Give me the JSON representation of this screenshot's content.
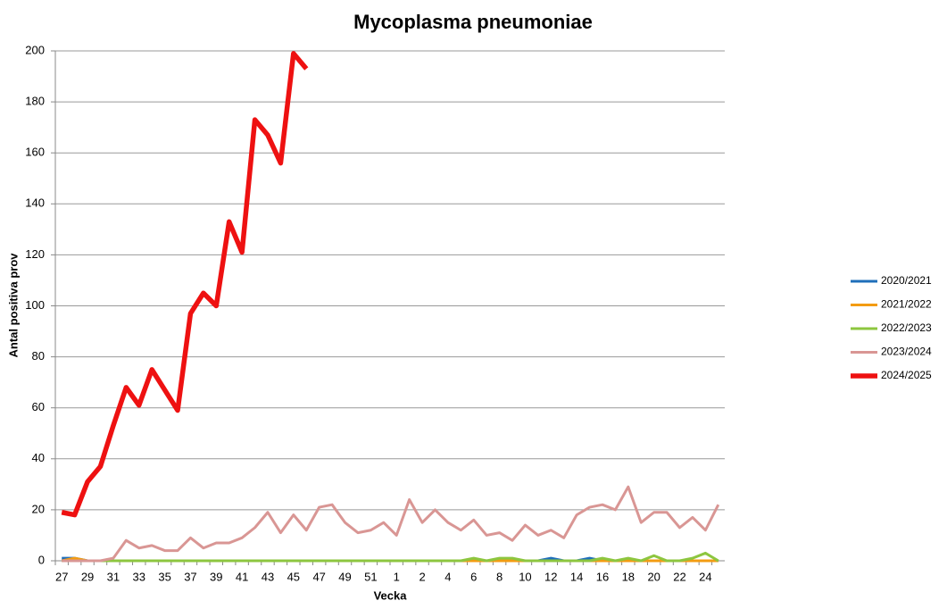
{
  "chart_data": {
    "type": "line",
    "title": "Mycoplasma pneumoniae",
    "x_label": "Vecka",
    "y_label": "Antal positiva prov",
    "categories": [
      "27",
      null,
      "29",
      null,
      "31",
      null,
      "33",
      null,
      "35",
      null,
      "37",
      null,
      "39",
      null,
      "41",
      null,
      "43",
      null,
      "45",
      null,
      "47",
      null,
      "49",
      null,
      "51",
      null,
      "1",
      null,
      "2",
      null,
      "4",
      null,
      "6",
      null,
      "8",
      null,
      "10",
      null,
      "12",
      null,
      "14",
      null,
      "16",
      null,
      "18",
      null,
      "20",
      null,
      "22",
      null,
      "24",
      null
    ],
    "ylim": [
      0,
      200
    ],
    "yticks": [
      0,
      20,
      40,
      60,
      80,
      100,
      120,
      140,
      160,
      180,
      200
    ],
    "grid": true,
    "legend": "right",
    "series": [
      {
        "name": "2020/2021",
        "color": "#1f6fba",
        "width": 3,
        "values": [
          1,
          1,
          0,
          0,
          0,
          0,
          0,
          0,
          0,
          0,
          0,
          0,
          0,
          0,
          0,
          0,
          0,
          0,
          0,
          0,
          0,
          0,
          0,
          0,
          0,
          0,
          0,
          0,
          0,
          0,
          0,
          0,
          0,
          0,
          0,
          0,
          0,
          0,
          1,
          0,
          0,
          1,
          0,
          0,
          0,
          0,
          0,
          0,
          0,
          0,
          0,
          0
        ]
      },
      {
        "name": "2021/2022",
        "color": "#f39c12",
        "width": 3,
        "values": [
          0,
          1,
          0,
          0,
          0,
          0,
          0,
          0,
          0,
          0,
          0,
          0,
          0,
          0,
          0,
          0,
          0,
          0,
          0,
          0,
          0,
          0,
          0,
          0,
          0,
          0,
          0,
          0,
          0,
          0,
          0,
          0,
          0,
          0,
          0,
          0,
          0,
          0,
          0,
          0,
          0,
          0,
          0,
          0,
          0,
          0,
          0,
          0,
          0,
          0,
          0,
          0
        ]
      },
      {
        "name": "2022/2023",
        "color": "#8dc63f",
        "width": 3,
        "values": [
          0,
          0,
          0,
          0,
          0,
          0,
          0,
          0,
          0,
          0,
          0,
          0,
          0,
          0,
          0,
          0,
          0,
          0,
          0,
          0,
          0,
          0,
          0,
          0,
          0,
          0,
          0,
          0,
          0,
          0,
          0,
          0,
          1,
          0,
          1,
          1,
          0,
          0,
          0,
          0,
          0,
          0,
          1,
          0,
          1,
          0,
          2,
          0,
          0,
          1,
          3,
          0
        ]
      },
      {
        "name": "2023/2024",
        "color": "#d99694",
        "width": 3,
        "values": [
          0,
          0,
          0,
          0,
          1,
          8,
          5,
          6,
          4,
          4,
          9,
          5,
          7,
          7,
          9,
          13,
          19,
          11,
          18,
          12,
          21,
          22,
          15,
          11,
          12,
          15,
          10,
          24,
          15,
          20,
          15,
          12,
          16,
          10,
          11,
          8,
          14,
          10,
          12,
          9,
          18,
          21,
          22,
          20,
          29,
          15,
          19,
          19,
          13,
          17,
          12,
          22
        ]
      },
      {
        "name": "2024/2025",
        "color": "#ee1111",
        "width": 5.5,
        "values": [
          19,
          18,
          31,
          37,
          53,
          68,
          61,
          75,
          67,
          59,
          97,
          105,
          100,
          133,
          121,
          173,
          167,
          156,
          199,
          193,
          null,
          null,
          null,
          null,
          null,
          null,
          null,
          null,
          null,
          null,
          null,
          null,
          null,
          null,
          null,
          null,
          null,
          null,
          null,
          null,
          null,
          null,
          null,
          null,
          null,
          null,
          null,
          null,
          null,
          null,
          null,
          null
        ]
      }
    ]
  }
}
